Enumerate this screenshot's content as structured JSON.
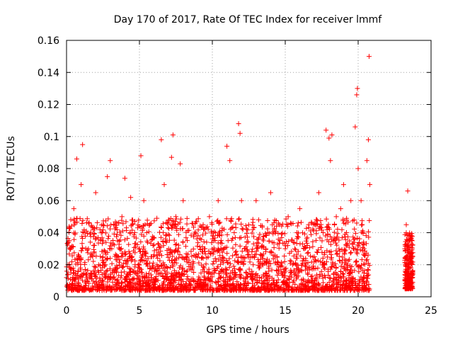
{
  "chart_data": {
    "type": "scatter",
    "title": "Day 170 of 2017, Rate Of TEC Index for receiver lmmf",
    "xlabel": "GPS time / hours",
    "ylabel": "ROTI / TECUs",
    "xlim": [
      0,
      25
    ],
    "ylim": [
      0,
      0.16
    ],
    "xticks": [
      "0",
      "5",
      "10",
      "15",
      "20",
      "25"
    ],
    "yticks": [
      "0",
      "0.02",
      "0.04",
      "0.06",
      "0.08",
      "0.1",
      "0.12",
      "0.14",
      "0.16"
    ],
    "grid": true,
    "marker": "plus",
    "color": "#ff0000",
    "series": [
      {
        "x": [
          0.0,
          0.1,
          0.2,
          0.3,
          0.5,
          0.7,
          1.0,
          1.1,
          1.2,
          1.5,
          2.0,
          2.2,
          2.5,
          2.8,
          3.0,
          3.1,
          3.5,
          3.8,
          4.0,
          4.3,
          4.4,
          4.7,
          5.0,
          5.1,
          5.3,
          5.5,
          5.8,
          6.2,
          6.5,
          6.7,
          7.0,
          7.2,
          7.3,
          7.5,
          7.8,
          8.0,
          8.2,
          8.5,
          9.0,
          9.3,
          9.5,
          9.8,
          10.0,
          10.4,
          10.8,
          11.0,
          11.2,
          11.5,
          11.8,
          11.9,
          12.0,
          12.2,
          12.5,
          12.8,
          13.0,
          13.2,
          13.5,
          13.8,
          14.0,
          14.3,
          14.6,
          15.0,
          15.2,
          15.5,
          15.8,
          16.0,
          16.3,
          16.6,
          17.0,
          17.3,
          17.6,
          17.8,
          18.0,
          18.1,
          18.2,
          18.5,
          18.8,
          19.0,
          19.2,
          19.5,
          19.8,
          19.9,
          19.95,
          20.0,
          20.2,
          20.4,
          20.6,
          20.7,
          20.75,
          20.8,
          23.2,
          23.3,
          23.4,
          23.5,
          23.6,
          23.7
        ],
        "y": [
          0.012,
          0.02,
          0.035,
          0.015,
          0.055,
          0.086,
          0.07,
          0.095,
          0.04,
          0.03,
          0.065,
          0.02,
          0.045,
          0.075,
          0.085,
          0.03,
          0.018,
          0.05,
          0.074,
          0.025,
          0.062,
          0.02,
          0.03,
          0.088,
          0.06,
          0.04,
          0.025,
          0.02,
          0.098,
          0.07,
          0.03,
          0.087,
          0.101,
          0.05,
          0.083,
          0.06,
          0.025,
          0.02,
          0.01,
          0.005,
          0.03,
          0.05,
          0.015,
          0.06,
          0.03,
          0.094,
          0.085,
          0.04,
          0.108,
          0.102,
          0.06,
          0.03,
          0.045,
          0.02,
          0.06,
          0.018,
          0.035,
          0.04,
          0.065,
          0.025,
          0.045,
          0.03,
          0.05,
          0.02,
          0.04,
          0.055,
          0.03,
          0.045,
          0.025,
          0.065,
          0.04,
          0.104,
          0.099,
          0.085,
          0.101,
          0.05,
          0.055,
          0.07,
          0.04,
          0.06,
          0.106,
          0.126,
          0.13,
          0.08,
          0.06,
          0.03,
          0.085,
          0.098,
          0.15,
          0.07,
          0.03,
          0.045,
          0.066,
          0.02,
          0.01,
          0.035
        ]
      }
    ]
  }
}
